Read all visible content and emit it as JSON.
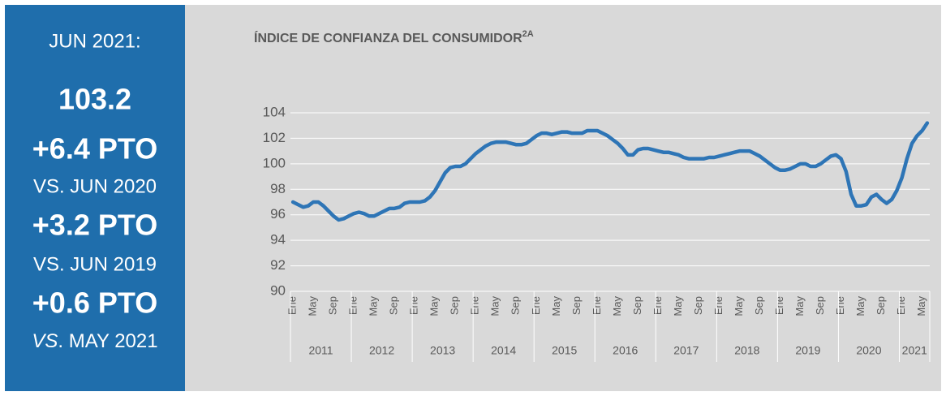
{
  "summary": {
    "date": "JUN 2021:",
    "value": "103.2",
    "change_1": "+6.4 PTO",
    "compare_1": "VS. JUN 2020",
    "change_2": "+3.2 PTO",
    "compare_2": "VS. JUN 2019",
    "change_3": "+0.6 PTO",
    "compare_3_prefix": "VS",
    "compare_3_rest": ". MAY 2021"
  },
  "chart_data": {
    "type": "line",
    "title": "ÍNDICE DE CONFIANZA DEL CONSUMIDOR",
    "title_sup": "2A",
    "categories": [
      "Ene",
      null,
      null,
      null,
      "May",
      null,
      null,
      null,
      "Sep",
      null,
      null,
      null,
      "Ene",
      null,
      null,
      null,
      "May",
      null,
      null,
      null,
      "Sep",
      null,
      null,
      null,
      "Ene",
      null,
      null,
      null,
      "May",
      null,
      null,
      null,
      "Sep",
      null,
      null,
      null,
      "Ene",
      null,
      null,
      null,
      "May",
      null,
      null,
      null,
      "Sep",
      null,
      null,
      null,
      "Ene",
      null,
      null,
      null,
      "May",
      null,
      null,
      null,
      "Sep",
      null,
      null,
      null,
      "Ene",
      null,
      null,
      null,
      "May",
      null,
      null,
      null,
      "Sep",
      null,
      null,
      null,
      "Ene",
      null,
      null,
      null,
      "May",
      null,
      null,
      null,
      "Sep",
      null,
      null,
      null,
      "Ene",
      null,
      null,
      null,
      "May",
      null,
      null,
      null,
      "Sep",
      null,
      null,
      null,
      "Ene",
      null,
      null,
      null,
      "May",
      null,
      null,
      null,
      "Sep",
      null,
      null,
      null,
      "Ene",
      null,
      null,
      null,
      "May",
      null,
      null,
      null,
      "Sep",
      null,
      null,
      null,
      "Ene",
      null,
      null,
      null,
      "May",
      null
    ],
    "year_groups": [
      "2011",
      "2012",
      "2013",
      "2014",
      "2015",
      "2016",
      "2017",
      "2018",
      "2019",
      "2020",
      "2021"
    ],
    "series": [
      {
        "name": "Índice",
        "color": "#2e75b6",
        "values": [
          97.0,
          96.8,
          96.6,
          96.7,
          97.0,
          97.0,
          96.7,
          96.3,
          95.9,
          95.6,
          95.7,
          95.9,
          96.1,
          96.2,
          96.1,
          95.9,
          95.9,
          96.1,
          96.3,
          96.5,
          96.5,
          96.6,
          96.9,
          97.0,
          97.0,
          97.0,
          97.1,
          97.4,
          97.9,
          98.6,
          99.3,
          99.7,
          99.8,
          99.8,
          100.0,
          100.4,
          100.8,
          101.1,
          101.4,
          101.6,
          101.7,
          101.7,
          101.7,
          101.6,
          101.5,
          101.5,
          101.6,
          101.9,
          102.2,
          102.4,
          102.4,
          102.3,
          102.4,
          102.5,
          102.5,
          102.4,
          102.4,
          102.4,
          102.6,
          102.6,
          102.6,
          102.4,
          102.2,
          101.9,
          101.6,
          101.2,
          100.7,
          100.7,
          101.1,
          101.2,
          101.2,
          101.1,
          101.0,
          100.9,
          100.9,
          100.8,
          100.7,
          100.5,
          100.4,
          100.4,
          100.4,
          100.4,
          100.5,
          100.5,
          100.6,
          100.7,
          100.8,
          100.9,
          101.0,
          101.0,
          101.0,
          100.8,
          100.6,
          100.3,
          100.0,
          99.7,
          99.5,
          99.5,
          99.6,
          99.8,
          100.0,
          100.0,
          99.8,
          99.8,
          100.0,
          100.3,
          100.6,
          100.7,
          100.4,
          99.4,
          97.6,
          96.7,
          96.7,
          96.8,
          97.4,
          97.6,
          97.2,
          96.9,
          97.2,
          97.9,
          98.9,
          100.4,
          101.6,
          102.2,
          102.6,
          103.2
        ]
      }
    ],
    "ylim": [
      90,
      104
    ],
    "yticks": [
      90,
      92,
      94,
      96,
      98,
      100,
      102,
      104
    ],
    "grid": true
  }
}
